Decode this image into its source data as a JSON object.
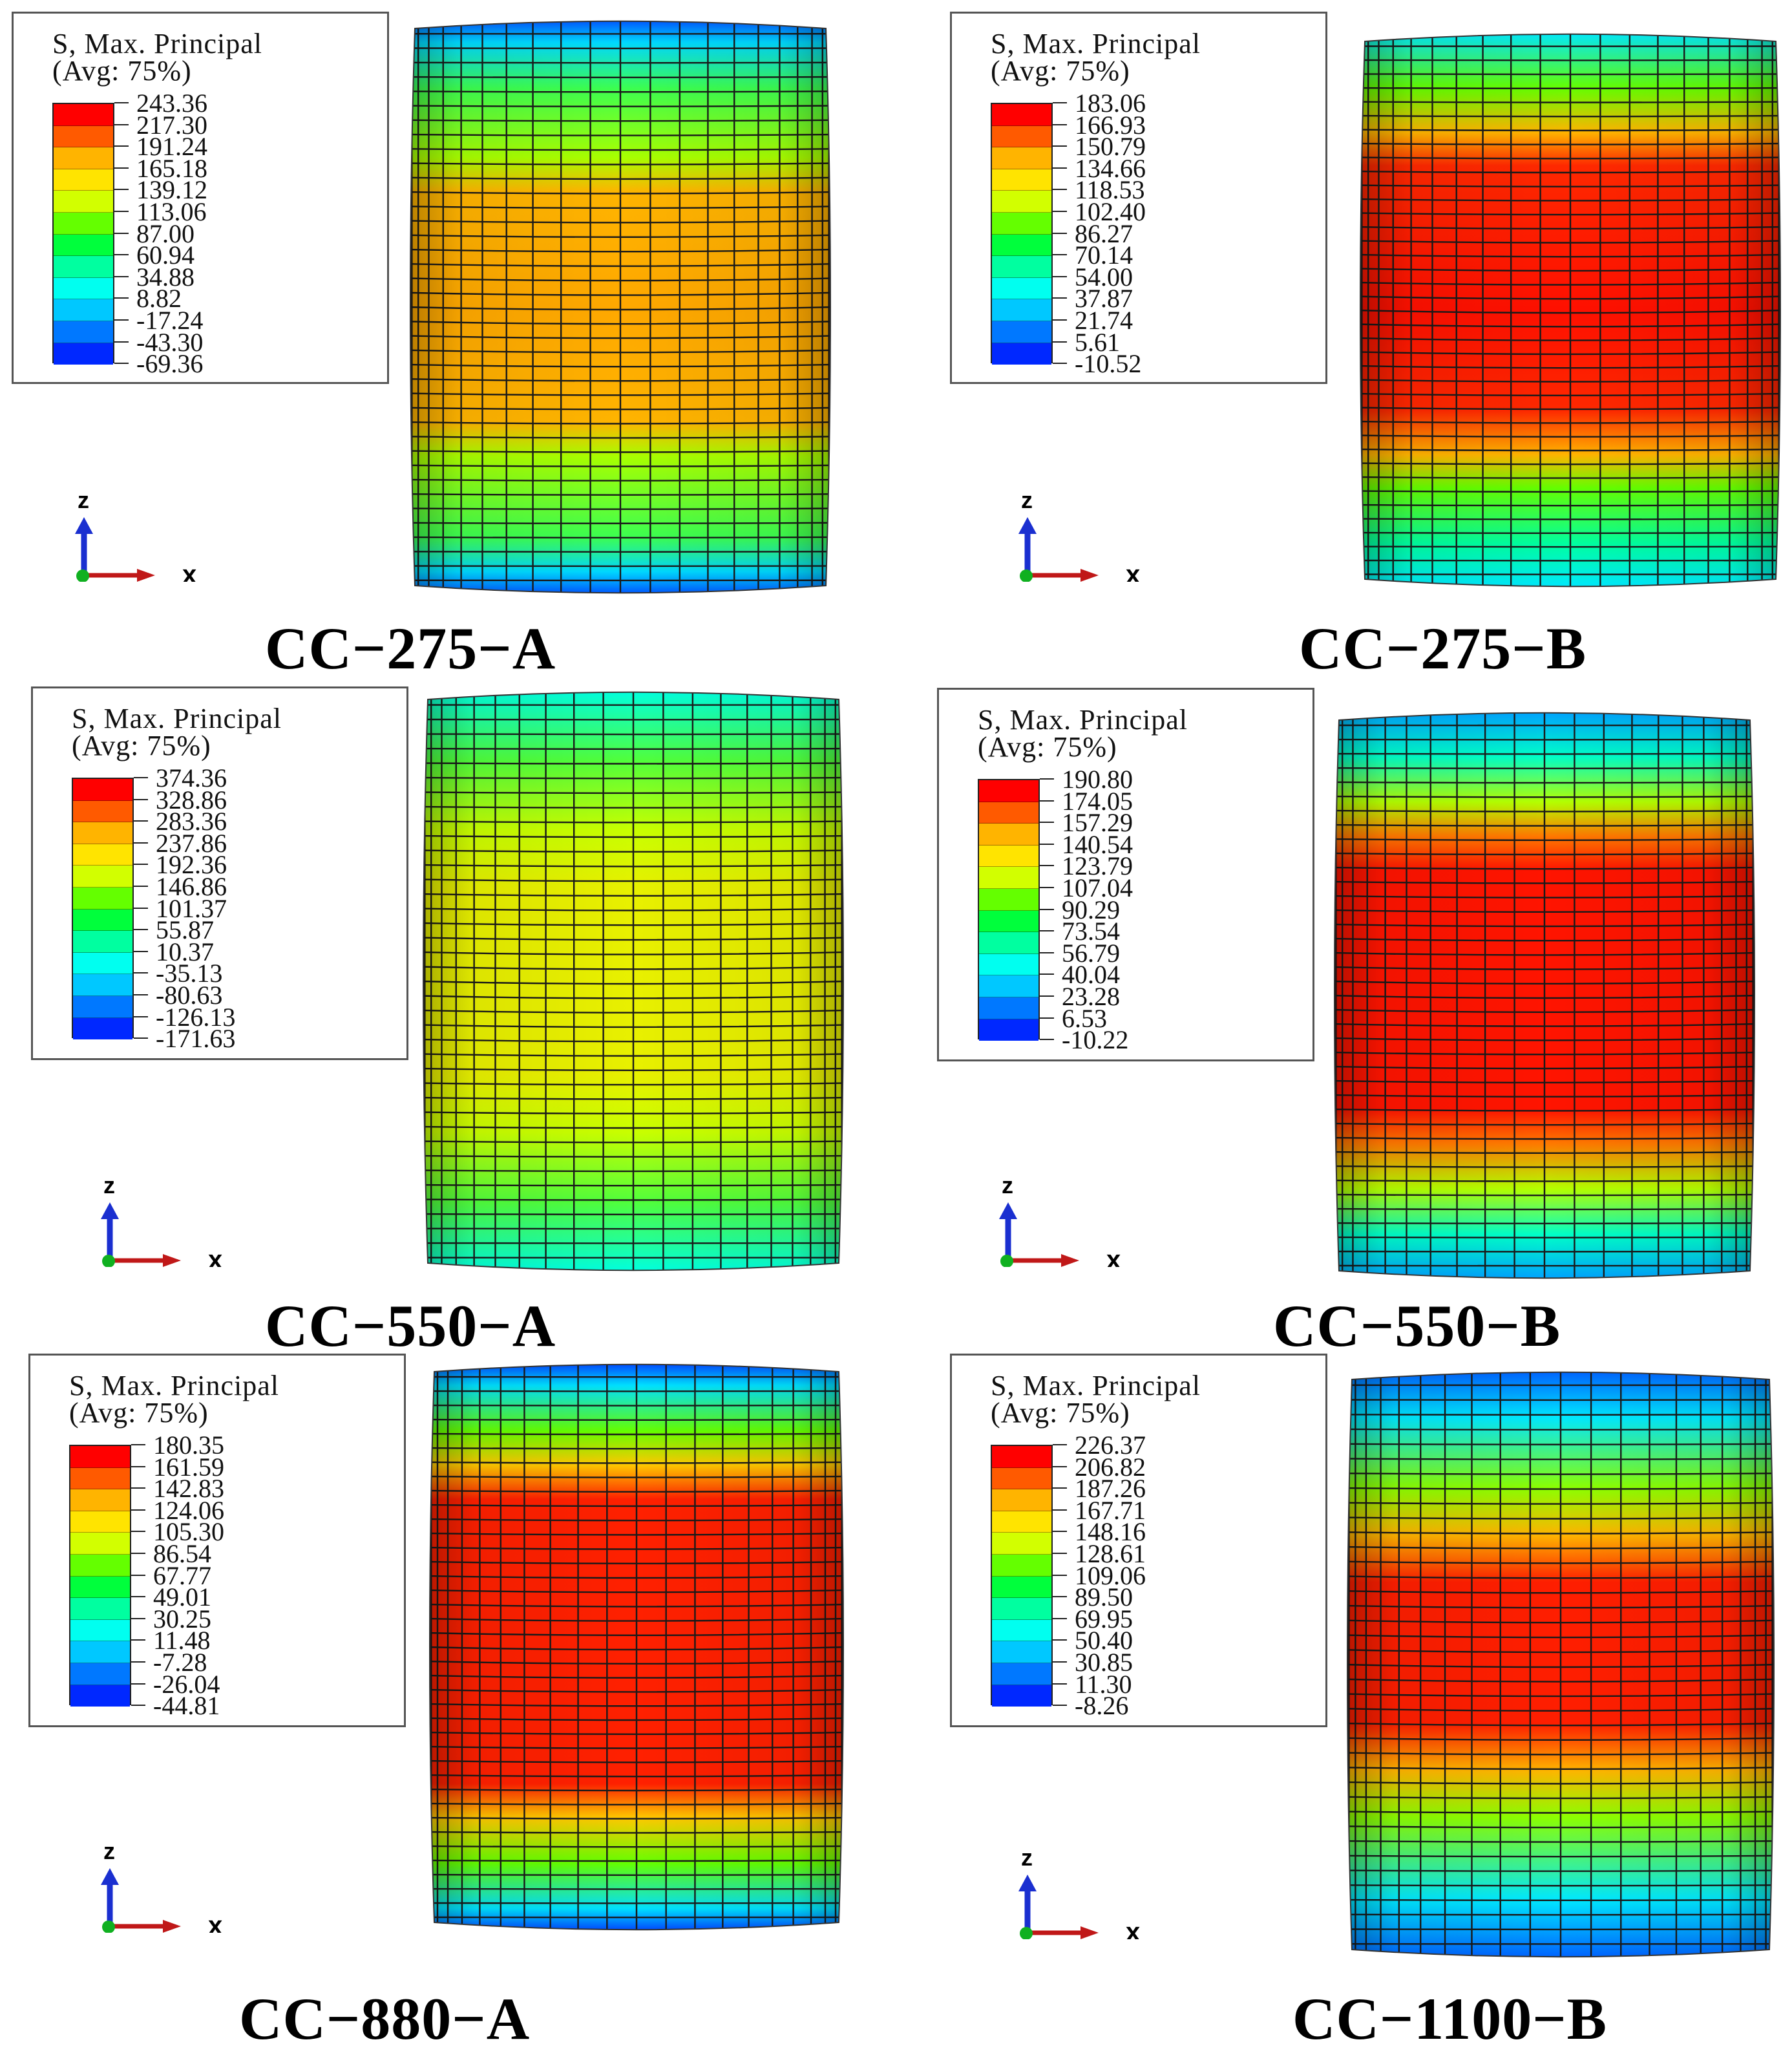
{
  "legend_title_line1": "S, Max. Principal",
  "legend_title_line2": "(Avg: 75%)",
  "axis_labels": {
    "z": "z",
    "x": "x"
  },
  "contour_colors": [
    "#ff0000",
    "#ff5a00",
    "#ffb400",
    "#ffe400",
    "#d2ff00",
    "#64ff00",
    "#00ff3c",
    "#00ffa0",
    "#00fff0",
    "#00c8ff",
    "#0078ff",
    "#0028ff"
  ],
  "panels": [
    {
      "id": "cc-275-a",
      "caption": "CC−275−A",
      "legend_values": [
        "243.36",
        "217.30",
        "191.24",
        "165.18",
        "139.12",
        "113.06",
        "87.00",
        "60.94",
        "34.88",
        "8.82",
        "-17.24",
        "-43.30",
        "-69.36"
      ],
      "bands": [
        {
          "at": 0.0,
          "color": "#0050ff"
        },
        {
          "at": 0.04,
          "color": "#00d8ff"
        },
        {
          "at": 0.12,
          "color": "#3cff50"
        },
        {
          "at": 0.24,
          "color": "#a8ff00"
        },
        {
          "at": 0.3,
          "color": "#ffb400"
        },
        {
          "at": 0.5,
          "color": "#ffa800"
        },
        {
          "at": 0.7,
          "color": "#ffb400"
        },
        {
          "at": 0.76,
          "color": "#a8ff00"
        },
        {
          "at": 0.9,
          "color": "#3cff50"
        },
        {
          "at": 0.96,
          "color": "#00d8ff"
        },
        {
          "at": 1.0,
          "color": "#0050ff"
        }
      ]
    },
    {
      "id": "cc-275-b",
      "caption": "CC−275−B",
      "legend_values": [
        "183.06",
        "166.93",
        "150.79",
        "134.66",
        "118.53",
        "102.40",
        "86.27",
        "70.14",
        "54.00",
        "37.87",
        "21.74",
        "5.61",
        "-10.52"
      ],
      "bands": [
        {
          "at": 0.0,
          "color": "#00e8ff"
        },
        {
          "at": 0.1,
          "color": "#64ff00"
        },
        {
          "at": 0.18,
          "color": "#ffb400"
        },
        {
          "at": 0.24,
          "color": "#ff2800"
        },
        {
          "at": 0.5,
          "color": "#ff1000"
        },
        {
          "at": 0.68,
          "color": "#ff2800"
        },
        {
          "at": 0.76,
          "color": "#ffb400"
        },
        {
          "at": 0.82,
          "color": "#64ff00"
        },
        {
          "at": 0.92,
          "color": "#00ffa0"
        },
        {
          "at": 1.0,
          "color": "#00e8ff"
        }
      ]
    },
    {
      "id": "cc-550-a",
      "caption": "CC−550−A",
      "legend_values": [
        "374.36",
        "328.86",
        "283.36",
        "237.86",
        "192.36",
        "146.86",
        "101.37",
        "55.87",
        "10.37",
        "-35.13",
        "-80.63",
        "-126.13",
        "-171.63"
      ],
      "bands": [
        {
          "at": 0.0,
          "color": "#00ffe0"
        },
        {
          "at": 0.12,
          "color": "#50ff3c"
        },
        {
          "at": 0.24,
          "color": "#c8ff00"
        },
        {
          "at": 0.34,
          "color": "#e8f000"
        },
        {
          "at": 0.66,
          "color": "#e8f000"
        },
        {
          "at": 0.76,
          "color": "#c8ff00"
        },
        {
          "at": 0.88,
          "color": "#50ff3c"
        },
        {
          "at": 1.0,
          "color": "#00ffe0"
        }
      ]
    },
    {
      "id": "cc-550-b",
      "caption": "CC−550−B",
      "legend_values": [
        "190.80",
        "174.05",
        "157.29",
        "140.54",
        "123.79",
        "107.04",
        "90.29",
        "73.54",
        "56.79",
        "40.04",
        "23.28",
        "6.53",
        "-10.22"
      ],
      "bands": [
        {
          "at": 0.0,
          "color": "#00a0ff"
        },
        {
          "at": 0.08,
          "color": "#00ffc8"
        },
        {
          "at": 0.16,
          "color": "#b4ff00"
        },
        {
          "at": 0.22,
          "color": "#ff7800"
        },
        {
          "at": 0.28,
          "color": "#ff1400"
        },
        {
          "at": 0.7,
          "color": "#ff1400"
        },
        {
          "at": 0.76,
          "color": "#ff7800"
        },
        {
          "at": 0.84,
          "color": "#b4ff00"
        },
        {
          "at": 0.92,
          "color": "#00ffc8"
        },
        {
          "at": 1.0,
          "color": "#00a0ff"
        }
      ]
    },
    {
      "id": "cc-880-a",
      "caption": "CC−880−A",
      "legend_values": [
        "180.35",
        "161.59",
        "142.83",
        "124.06",
        "105.30",
        "86.54",
        "67.77",
        "49.01",
        "30.25",
        "11.48",
        "-7.28",
        "-26.04",
        "-44.81"
      ],
      "bands": [
        {
          "at": 0.0,
          "color": "#0040ff"
        },
        {
          "at": 0.04,
          "color": "#00e0ff"
        },
        {
          "at": 0.12,
          "color": "#64ff00"
        },
        {
          "at": 0.18,
          "color": "#ffc800"
        },
        {
          "at": 0.24,
          "color": "#ff2000"
        },
        {
          "at": 0.74,
          "color": "#ff2000"
        },
        {
          "at": 0.8,
          "color": "#ffc800"
        },
        {
          "at": 0.88,
          "color": "#64ff00"
        },
        {
          "at": 0.96,
          "color": "#00e0ff"
        },
        {
          "at": 1.0,
          "color": "#0040ff"
        }
      ]
    },
    {
      "id": "cc-1100-b",
      "caption": "CC−1100−B",
      "legend_values": [
        "226.37",
        "206.82",
        "187.26",
        "167.71",
        "148.16",
        "128.61",
        "109.06",
        "89.50",
        "69.95",
        "50.40",
        "30.85",
        "11.30",
        "-8.26"
      ],
      "bands": [
        {
          "at": 0.0,
          "color": "#0060ff"
        },
        {
          "at": 0.08,
          "color": "#00e8ff"
        },
        {
          "at": 0.2,
          "color": "#8cff00"
        },
        {
          "at": 0.28,
          "color": "#ffb400"
        },
        {
          "at": 0.36,
          "color": "#ff1e00"
        },
        {
          "at": 0.6,
          "color": "#ff1e00"
        },
        {
          "at": 0.68,
          "color": "#ffb400"
        },
        {
          "at": 0.76,
          "color": "#8cff00"
        },
        {
          "at": 0.9,
          "color": "#00e8ff"
        },
        {
          "at": 1.0,
          "color": "#0060ff"
        }
      ]
    }
  ]
}
